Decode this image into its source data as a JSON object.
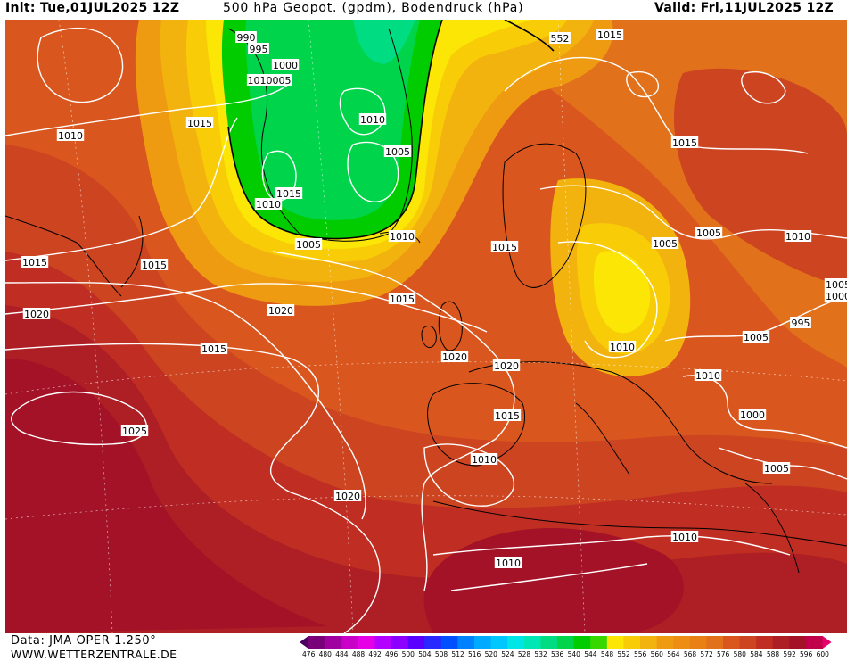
{
  "header": {
    "init": "Init: Tue,01JUL2025 12Z",
    "title": "500 hPa Geopot. (gpdm), Bodendruck (hPa)",
    "valid": "Valid: Fri,11JUL2025 12Z"
  },
  "footer": {
    "data_source": "Data: JMA OPER 1.250°",
    "site": "WWW.WETTERZENTRALE.DE"
  },
  "colors": {
    "576": "#e2711b",
    "580": "#d9571e",
    "584": "#cd4421",
    "588": "#c02e23",
    "592": "#ad1f24",
    "596": "#a31226",
    "564": "#ee9b12",
    "568": "#ee8d14",
    "572": "#e98016",
    "560": "#f3b30e",
    "556": "#f8cd08",
    "552": "#fbe605",
    "548": "#00cc00",
    "544": "#00d44a",
    "540": "#00dc82",
    "isobar": "#ffffff",
    "coastline": "#000000"
  },
  "legend": {
    "values": [
      "476",
      "480",
      "484",
      "488",
      "492",
      "496",
      "500",
      "504",
      "508",
      "512",
      "516",
      "520",
      "524",
      "528",
      "532",
      "536",
      "540",
      "544",
      "548",
      "552",
      "556",
      "560",
      "564",
      "568",
      "572",
      "576",
      "580",
      "584",
      "588",
      "592",
      "596",
      "600"
    ],
    "colors": [
      "#4b0060",
      "#7a007a",
      "#a000a0",
      "#c800c8",
      "#e600e6",
      "#b400ff",
      "#8c00ff",
      "#5a00ff",
      "#2828ff",
      "#0050ff",
      "#0082ff",
      "#00aaff",
      "#00c8ff",
      "#00e6e6",
      "#00e6b4",
      "#00dc82",
      "#00d44a",
      "#00cc00",
      "#36d800",
      "#fbe605",
      "#f8cd08",
      "#f3b30e",
      "#ee9b12",
      "#ee8d14",
      "#e98016",
      "#e2711b",
      "#d9571e",
      "#cd4421",
      "#c02e23",
      "#ad1f24",
      "#a31226",
      "#c0004a",
      "#e6006e"
    ]
  },
  "isobar_labels": [
    {
      "id": "990",
      "text": "990"
    },
    {
      "id": "995a",
      "text": "995"
    },
    {
      "id": "1000a",
      "text": "1000"
    },
    {
      "id": "1010005",
      "text": "1010005"
    },
    {
      "id": "1015a",
      "text": "1015"
    },
    {
      "id": "1010a",
      "text": "1010"
    },
    {
      "id": "1010b",
      "text": "1010"
    },
    {
      "id": "1005a",
      "text": "1005"
    },
    {
      "id": "1015b",
      "text": "1015"
    },
    {
      "id": "1010c",
      "text": "1010"
    },
    {
      "id": "1005b",
      "text": "1005"
    },
    {
      "id": "1010d",
      "text": "1010"
    },
    {
      "id": "552",
      "text": "552"
    },
    {
      "id": "1015c",
      "text": "1015"
    },
    {
      "id": "1015d",
      "text": "1015"
    },
    {
      "id": "1015e",
      "text": "1015"
    },
    {
      "id": "1015f",
      "text": "1015"
    },
    {
      "id": "1020a",
      "text": "1020"
    },
    {
      "id": "1015g",
      "text": "1015"
    },
    {
      "id": "1020b",
      "text": "1020"
    },
    {
      "id": "1015h",
      "text": "1015"
    },
    {
      "id": "1020c",
      "text": "1020"
    },
    {
      "id": "1020d",
      "text": "1020"
    },
    {
      "id": "1025",
      "text": "1025"
    },
    {
      "id": "1015i",
      "text": "1015"
    },
    {
      "id": "1010e",
      "text": "1010"
    },
    {
      "id": "1020e",
      "text": "1020"
    },
    {
      "id": "1005c",
      "text": "1005"
    },
    {
      "id": "1005d",
      "text": "1005"
    },
    {
      "id": "1010f",
      "text": "1010"
    },
    {
      "id": "1005e",
      "text": "1005"
    },
    {
      "id": "1000b",
      "text": "1000"
    },
    {
      "id": "995b",
      "text": "995"
    },
    {
      "id": "1010g",
      "text": "1010"
    },
    {
      "id": "1005f",
      "text": "1005"
    },
    {
      "id": "1010h",
      "text": "1010"
    },
    {
      "id": "1000c",
      "text": "1000"
    },
    {
      "id": "1005g",
      "text": "1005"
    },
    {
      "id": "1010i",
      "text": "1010"
    },
    {
      "id": "1010j",
      "text": "1010"
    },
    {
      "id": "1015j",
      "text": "1015"
    }
  ]
}
